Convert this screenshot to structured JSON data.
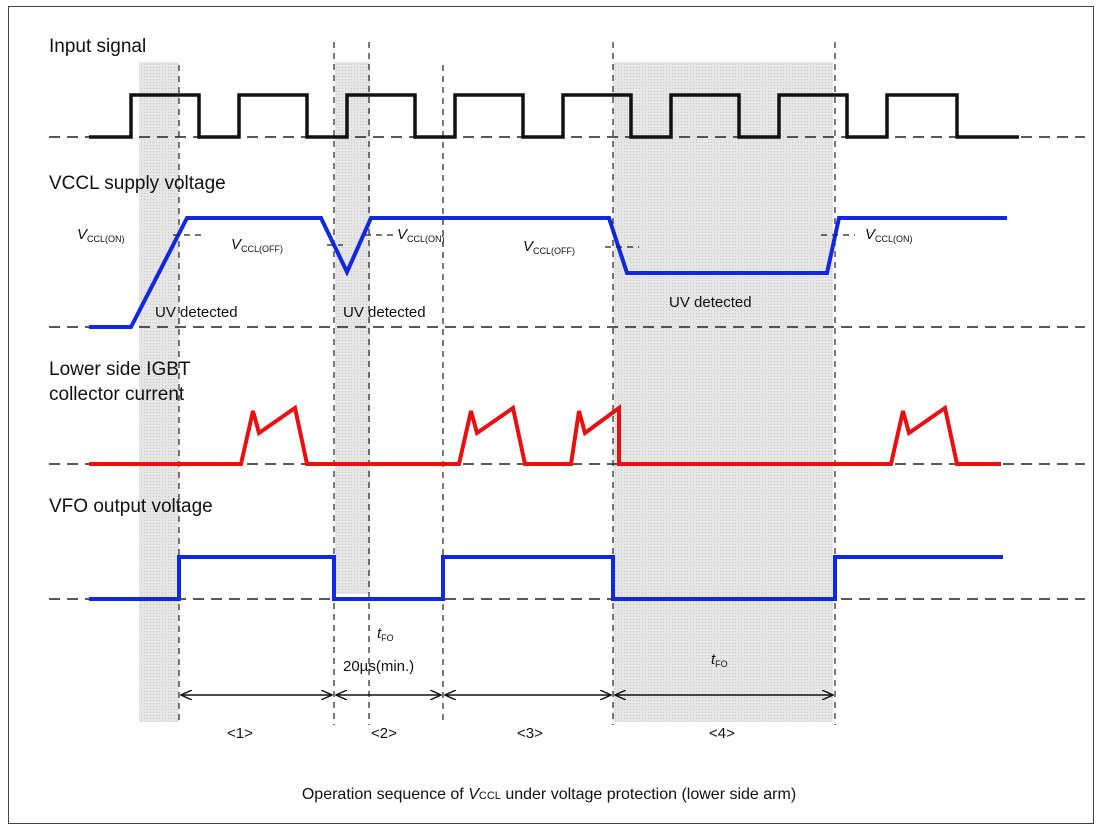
{
  "caption": {
    "prefix": "Operation sequence of ",
    "v": "V",
    "sub": "CCL",
    "suffix": " under voltage protection (lower side arm)"
  },
  "signals": {
    "input": "Input signal",
    "vccl": "VCCL supply voltage",
    "igbt_line1": "Lower side IGBT",
    "igbt_line2": "collector current",
    "vfo": "VFO output voltage"
  },
  "annotations": {
    "v": "V",
    "ccl_on": "CCL(ON)",
    "ccl_off": "CCL(OFF)",
    "uv1": "UV detected",
    "uv2": "UV detected",
    "uv3": "UV detected",
    "t": "t",
    "fo": "FO",
    "min_time": "20µs(min.)"
  },
  "intervals": [
    "<1>",
    "<2>",
    "<3>",
    "<4>"
  ],
  "colors": {
    "input": "#111111",
    "vccl": "#1028e0",
    "current": "#e81010",
    "vfo": "#1028e0",
    "shade": "#e2e2e2"
  }
}
